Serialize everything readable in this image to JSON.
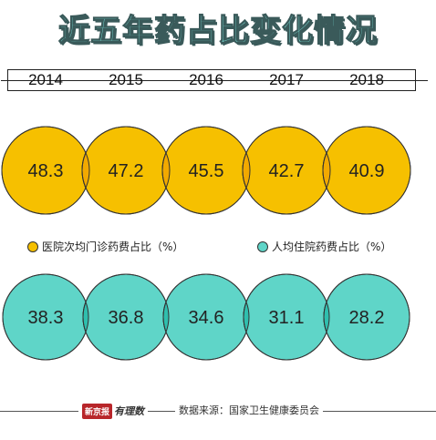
{
  "title": "近五年药占比变化情况",
  "chart_data": {
    "type": "bubble",
    "categories": [
      "2014",
      "2015",
      "2016",
      "2017",
      "2018"
    ],
    "series": [
      {
        "name": "医院次均门诊药费占比（%）",
        "values": [
          48.3,
          47.2,
          45.5,
          42.7,
          40.9
        ],
        "color": "#f6c000"
      },
      {
        "name": "人均住院药费占比（%）",
        "values": [
          38.3,
          36.8,
          34.6,
          31.1,
          28.2
        ],
        "color": "#5fd5c8"
      }
    ],
    "value_labels": {
      "outpatient": [
        "48.3",
        "47.2",
        "45.5",
        "42.7",
        "40.9"
      ],
      "inpatient": [
        "38.3",
        "36.8",
        "34.6",
        "31.1",
        "28.2"
      ]
    },
    "overlap_colors": {
      "outpatient": "#f2a900",
      "inpatient": "#2fbfae"
    },
    "legend": {
      "outpatient": "医院次均门诊药费占比（%）",
      "inpatient": "人均住院药费占比（%）"
    }
  },
  "footer": {
    "brand_badge": "新京报",
    "brand_name": "有理数",
    "source": "数据来源：国家卫生健康委员会"
  }
}
